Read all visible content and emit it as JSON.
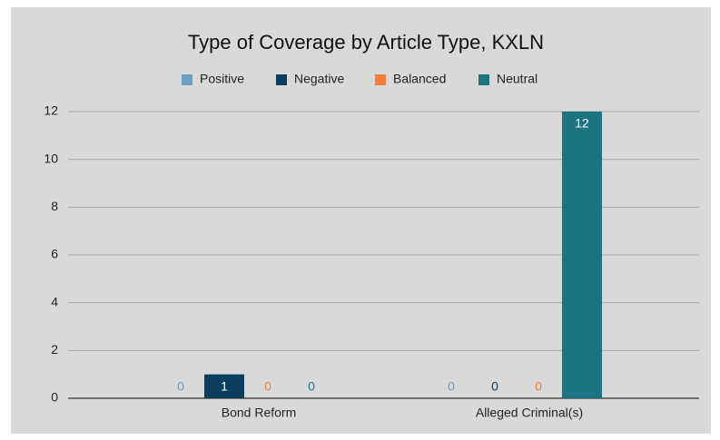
{
  "chart_data": {
    "type": "bar",
    "title": "Type of Coverage by Article Type, KXLN",
    "categories": [
      "Bond Reform",
      "Alleged Criminal(s)"
    ],
    "series": [
      {
        "name": "Positive",
        "color": "#6a9fbf",
        "values": [
          0,
          0
        ]
      },
      {
        "name": "Negative",
        "color": "#0b3d5c",
        "values": [
          1,
          0
        ]
      },
      {
        "name": "Balanced",
        "color": "#f47c3c",
        "values": [
          0,
          0
        ]
      },
      {
        "name": "Neutral",
        "color": "#1c7482",
        "values": [
          0,
          12
        ]
      }
    ],
    "ylim": [
      0,
      12
    ],
    "yticks": [
      0,
      2,
      4,
      6,
      8,
      10,
      12
    ],
    "grid": true,
    "legend": "top"
  }
}
